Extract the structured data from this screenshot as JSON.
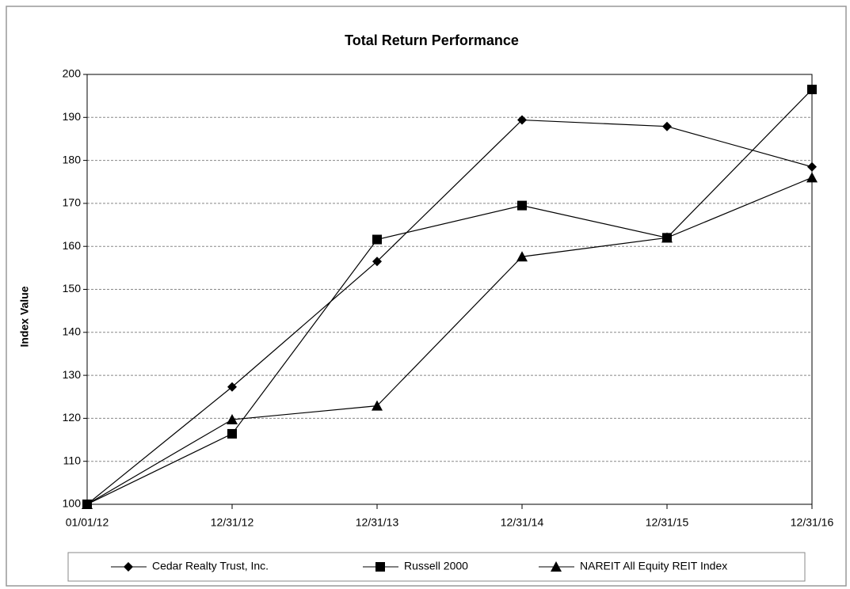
{
  "chart_data": {
    "type": "line",
    "title": "Total Return Performance",
    "y_label": "Index Value",
    "categories": [
      "01/01/12",
      "12/31/12",
      "12/31/13",
      "12/31/14",
      "12/31/15",
      "12/31/16"
    ],
    "series": [
      {
        "name": "Cedar Realty Trust, Inc.",
        "color": "#000000",
        "marker": "diamond",
        "values": [
          100,
          127.3,
          156.5,
          189.4,
          187.9,
          178.5
        ]
      },
      {
        "name": "Russell 2000",
        "color": "#000000",
        "marker": "square",
        "values": [
          100,
          116.4,
          161.6,
          169.5,
          162,
          196.5
        ]
      },
      {
        "name": "NAREIT All Equity REIT Index",
        "color": "#000000",
        "marker": "triangle",
        "values": [
          100,
          119.7,
          122.9,
          157.6,
          162,
          176
        ]
      }
    ],
    "ylim": [
      100,
      200
    ],
    "yticks": [
      100,
      110,
      120,
      130,
      140,
      150,
      160,
      170,
      180,
      190,
      200
    ],
    "grid": true,
    "legend": "bottom"
  }
}
